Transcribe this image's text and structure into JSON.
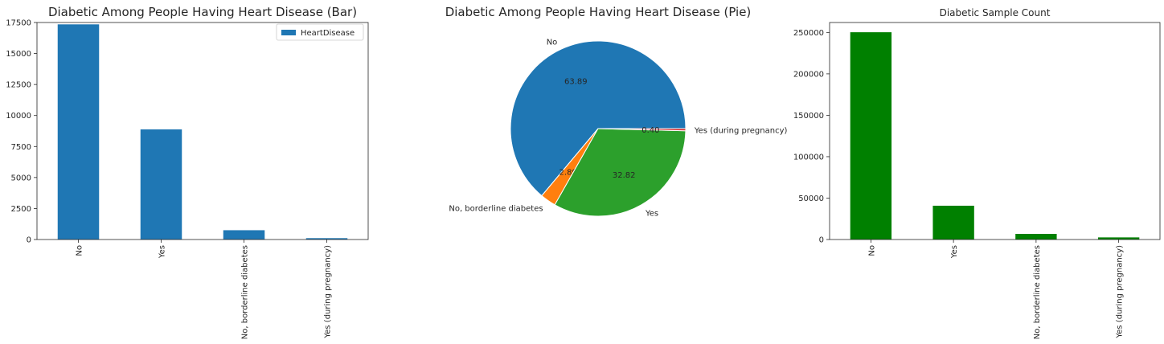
{
  "chart_data": [
    {
      "type": "bar",
      "title": "Diabetic Among People Having Heart Disease (Bar)",
      "categories": [
        "No",
        "Yes",
        "No, borderline diabetes",
        "Yes (during pregnancy)"
      ],
      "series": [
        {
          "name": "HeartDisease",
          "values": [
            17350,
            8880,
            750,
            110
          ],
          "color": "#1f77b4"
        }
      ],
      "ylim": [
        0,
        17500
      ],
      "yticks": [
        0,
        2500,
        5000,
        7500,
        10000,
        12500,
        15000,
        17500
      ],
      "ytick_labels": [
        "0",
        "2500",
        "5000",
        "7500",
        "10000",
        "12500",
        "15000",
        "17500"
      ],
      "legend": "top-right",
      "grid": false
    },
    {
      "type": "pie",
      "title": "Diabetic Among People Having Heart Disease (Pie)",
      "slices": [
        {
          "label": "No",
          "value": 63.89,
          "pct_label": "63.89",
          "color": "#1f77b4"
        },
        {
          "label": "No, borderline diabetes",
          "value": 2.89,
          "pct_label": "2.89",
          "color": "#ff7f0e"
        },
        {
          "label": "Yes",
          "value": 32.82,
          "pct_label": "32.82",
          "color": "#2ca02c"
        },
        {
          "label": "Yes (during pregnancy)",
          "value": 0.4,
          "pct_label": "0.40",
          "color": "#d62728"
        }
      ]
    },
    {
      "type": "bar",
      "title": "Diabetic Sample Count",
      "categories": [
        "No",
        "Yes",
        "No, borderline diabetes",
        "Yes (during pregnancy)"
      ],
      "series": [
        {
          "values": [
            250250,
            40800,
            6800,
            2550
          ],
          "color": "#008000"
        }
      ],
      "ylim": [
        0,
        262000
      ],
      "yticks": [
        0,
        50000,
        100000,
        150000,
        200000,
        250000
      ],
      "ytick_labels": [
        "0",
        "50000",
        "100000",
        "150000",
        "200000",
        "250000"
      ],
      "grid": false
    }
  ]
}
